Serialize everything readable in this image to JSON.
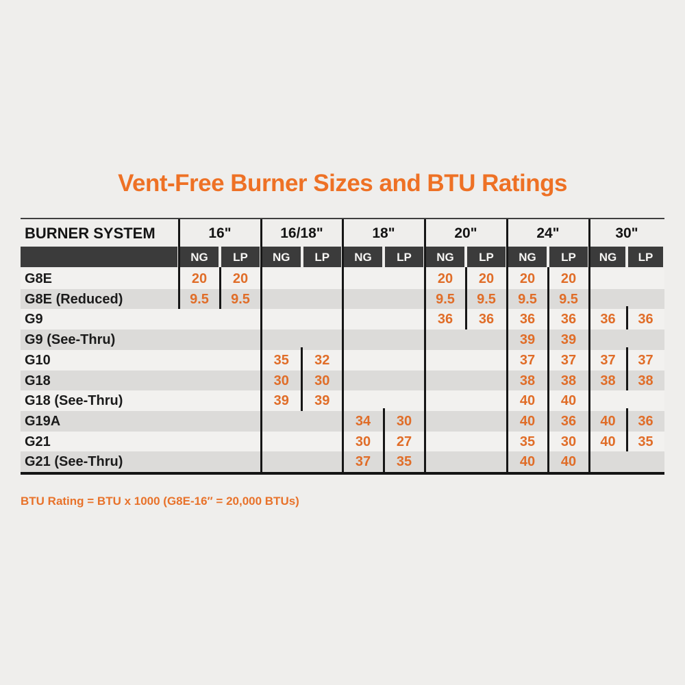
{
  "colors": {
    "page_background": "#efeeec",
    "title_orange": "#ee7125",
    "value_orange": "#e06d28",
    "footnote_orange": "#e8722a",
    "header_dark": "#3b3b3b",
    "row_light": "#f2f1ef",
    "row_alt": "#dcdbd9",
    "divider_black": "#161616",
    "text_black": "#1b1b1b"
  },
  "chart_data": {
    "type": "table",
    "title": "Vent-Free Burner Sizes and BTU Ratings",
    "row_header": "BURNER SYSTEM",
    "column_groups": [
      "16\"",
      "16/18\"",
      "18\"",
      "20\"",
      "24\"",
      "30\""
    ],
    "sub_columns": [
      "NG",
      "LP"
    ],
    "rows": [
      {
        "system": "G8E",
        "values": [
          [
            "20",
            "20"
          ],
          [
            "",
            ""
          ],
          [
            "",
            ""
          ],
          [
            "20",
            "20"
          ],
          [
            "20",
            "20"
          ],
          [
            "",
            ""
          ]
        ]
      },
      {
        "system": "G8E (Reduced)",
        "values": [
          [
            "9.5",
            "9.5"
          ],
          [
            "",
            ""
          ],
          [
            "",
            ""
          ],
          [
            "9.5",
            "9.5"
          ],
          [
            "9.5",
            "9.5"
          ],
          [
            "",
            ""
          ]
        ]
      },
      {
        "system": "G9",
        "values": [
          [
            "",
            ""
          ],
          [
            "",
            ""
          ],
          [
            "",
            ""
          ],
          [
            "36",
            "36"
          ],
          [
            "36",
            "36"
          ],
          [
            "36",
            "36"
          ]
        ]
      },
      {
        "system": "G9 (See-Thru)",
        "values": [
          [
            "",
            ""
          ],
          [
            "",
            ""
          ],
          [
            "",
            ""
          ],
          [
            "",
            ""
          ],
          [
            "39",
            "39"
          ],
          [
            "",
            ""
          ]
        ]
      },
      {
        "system": "G10",
        "values": [
          [
            "",
            ""
          ],
          [
            "35",
            "32"
          ],
          [
            "",
            ""
          ],
          [
            "",
            ""
          ],
          [
            "37",
            "37"
          ],
          [
            "37",
            "37"
          ]
        ]
      },
      {
        "system": "G18",
        "values": [
          [
            "",
            ""
          ],
          [
            "30",
            "30"
          ],
          [
            "",
            ""
          ],
          [
            "",
            ""
          ],
          [
            "38",
            "38"
          ],
          [
            "38",
            "38"
          ]
        ]
      },
      {
        "system": "G18 (See-Thru)",
        "values": [
          [
            "",
            ""
          ],
          [
            "39",
            "39"
          ],
          [
            "",
            ""
          ],
          [
            "",
            ""
          ],
          [
            "40",
            "40"
          ],
          [
            "",
            ""
          ]
        ]
      },
      {
        "system": "G19A",
        "values": [
          [
            "",
            ""
          ],
          [
            "",
            ""
          ],
          [
            "34",
            "30"
          ],
          [
            "",
            ""
          ],
          [
            "40",
            "36"
          ],
          [
            "40",
            "36"
          ]
        ]
      },
      {
        "system": "G21",
        "values": [
          [
            "",
            ""
          ],
          [
            "",
            ""
          ],
          [
            "30",
            "27"
          ],
          [
            "",
            ""
          ],
          [
            "35",
            "30"
          ],
          [
            "40",
            "35"
          ]
        ]
      },
      {
        "system": "G21 (See-Thru)",
        "values": [
          [
            "",
            ""
          ],
          [
            "",
            ""
          ],
          [
            "37",
            "35"
          ],
          [
            "",
            ""
          ],
          [
            "40",
            "40"
          ],
          [
            "",
            ""
          ]
        ]
      }
    ],
    "footnote": "BTU Rating = BTU x 1000 (G8E-16″ = 20,000 BTUs)"
  }
}
